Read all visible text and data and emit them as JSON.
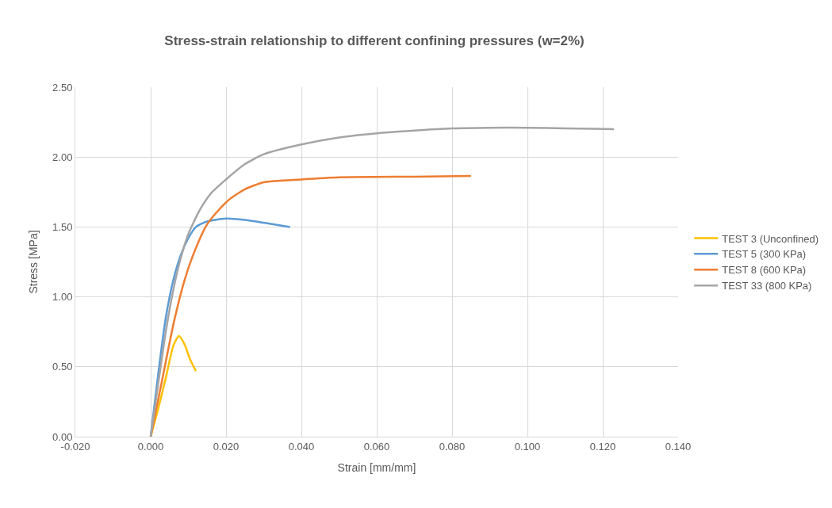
{
  "chart_data": {
    "type": "line",
    "title": "Stress-strain relationship to different confining pressures (w=2%)",
    "xlabel": "Strain [mm/mm]",
    "ylabel": "Stress [MPa]",
    "xlim": [
      -0.02,
      0.14
    ],
    "xticks": [
      {
        "value": -0.02,
        "label": "-0.020"
      },
      {
        "value": 0,
        "label": "0.000"
      },
      {
        "value": 0.02,
        "label": "0.020"
      },
      {
        "value": 0.04,
        "label": "0.040"
      },
      {
        "value": 0.06,
        "label": "0.060"
      },
      {
        "value": 0.08,
        "label": "0.080"
      },
      {
        "value": 0.1,
        "label": "0.100"
      },
      {
        "value": 0.12,
        "label": "0.120"
      },
      {
        "value": 0.14,
        "label": "0.140"
      }
    ],
    "ylim": [
      0,
      2.5
    ],
    "yticks": [
      {
        "value": 0,
        "label": "0.00"
      },
      {
        "value": 0.5,
        "label": "0.50"
      },
      {
        "value": 1,
        "label": "1.00"
      },
      {
        "value": 1.5,
        "label": "1.50"
      },
      {
        "value": 2,
        "label": "2.00"
      },
      {
        "value": 2.5,
        "label": "2.50"
      }
    ],
    "grid": true,
    "legend": "right",
    "marker": "none",
    "line_style": "solid",
    "series": [
      {
        "name": "TEST 3 (Unconfined)",
        "color": "#ffc000",
        "x": [
          0,
          0.002,
          0.004,
          0.006,
          0.0075,
          0.009,
          0.0105,
          0.012
        ],
        "values": [
          0,
          0.2,
          0.42,
          0.65,
          0.72,
          0.66,
          0.55,
          0.47
        ]
      },
      {
        "name": "TEST 5 (300 KPa)",
        "color": "#5b9bd5",
        "x": [
          0,
          0.002,
          0.004,
          0.006,
          0.008,
          0.01,
          0.012,
          0.015,
          0.02,
          0.025,
          0.03,
          0.037
        ],
        "values": [
          0,
          0.45,
          0.85,
          1.12,
          1.3,
          1.42,
          1.5,
          1.54,
          1.56,
          1.55,
          1.53,
          1.5
        ]
      },
      {
        "name": "TEST 8 (600 KPa)",
        "color": "#ed7d31",
        "x": [
          0,
          0.003,
          0.006,
          0.009,
          0.012,
          0.015,
          0.018,
          0.021,
          0.025,
          0.03,
          0.04,
          0.05,
          0.07,
          0.085
        ],
        "values": [
          0,
          0.4,
          0.8,
          1.12,
          1.35,
          1.52,
          1.62,
          1.7,
          1.77,
          1.82,
          1.84,
          1.855,
          1.86,
          1.865
        ]
      },
      {
        "name": "TEST 33 (800 KPa)",
        "color": "#a5a5a5",
        "x": [
          0,
          0.002,
          0.004,
          0.006,
          0.008,
          0.01,
          0.013,
          0.016,
          0.02,
          0.025,
          0.03,
          0.04,
          0.05,
          0.06,
          0.07,
          0.08,
          0.09,
          0.1,
          0.11,
          0.123
        ],
        "values": [
          0,
          0.38,
          0.75,
          1.05,
          1.28,
          1.45,
          1.62,
          1.74,
          1.84,
          1.95,
          2.02,
          2.09,
          2.14,
          2.17,
          2.19,
          2.205,
          2.21,
          2.21,
          2.205,
          2.2
        ]
      }
    ]
  }
}
